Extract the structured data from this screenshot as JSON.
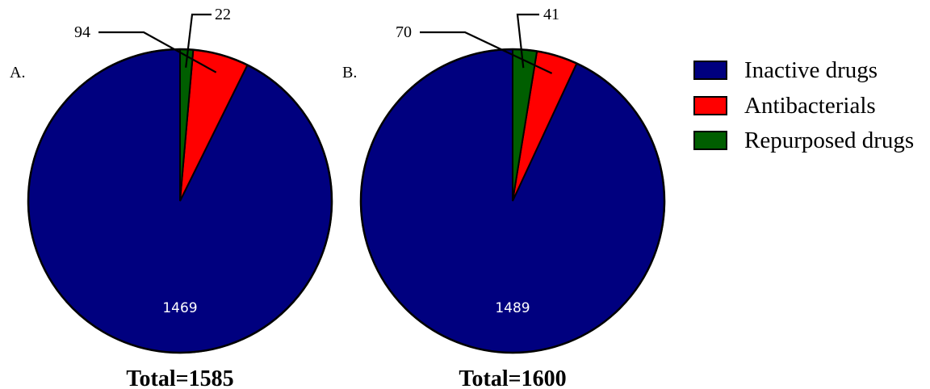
{
  "chart_data": [
    {
      "type": "pie",
      "panel_label": "A.",
      "total_label": "Total=1585",
      "slices": [
        {
          "name": "Inactive drugs",
          "value": 1469,
          "label": "1469",
          "color": "#00007f"
        },
        {
          "name": "Antibacterials",
          "value": 94,
          "label": "94",
          "color": "#ff0000"
        },
        {
          "name": "Repurposed drugs",
          "value": 22,
          "label": "22",
          "color": "#005e00"
        }
      ]
    },
    {
      "type": "pie",
      "panel_label": "B.",
      "total_label": "Total=1600",
      "slices": [
        {
          "name": "Inactive drugs",
          "value": 1489,
          "label": "1489",
          "color": "#00007f"
        },
        {
          "name": "Antibacterials",
          "value": 70,
          "label": "70",
          "color": "#ff0000"
        },
        {
          "name": "Repurposed drugs",
          "value": 41,
          "label": "41",
          "color": "#005e00"
        }
      ]
    }
  ],
  "legend": [
    {
      "label": "Inactive drugs",
      "color": "#00007f"
    },
    {
      "label": "Antibacterials",
      "color": "#ff0000"
    },
    {
      "label": "Repurposed drugs",
      "color": "#005e00"
    }
  ]
}
